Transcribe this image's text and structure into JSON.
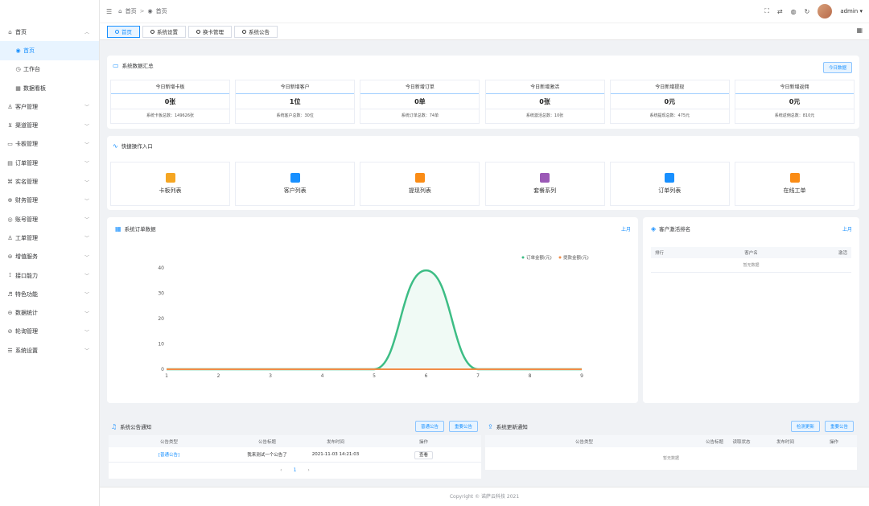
{
  "sidebar": {
    "items": [
      {
        "icon": "home-icon",
        "glyph": "⌂",
        "label": "首页",
        "expanded": true
      },
      {
        "icon": "dot-circle-icon",
        "glyph": "◉",
        "label": "首页",
        "sub": true,
        "active": true
      },
      {
        "icon": "clock-icon",
        "glyph": "◷",
        "label": "工作台",
        "sub": true
      },
      {
        "icon": "dashboard-icon",
        "glyph": "▦",
        "label": "数据看板",
        "sub": true
      },
      {
        "icon": "user-icon",
        "glyph": "♙",
        "label": "客户管理"
      },
      {
        "icon": "cart-icon",
        "glyph": "⊻",
        "label": "渠道管理"
      },
      {
        "icon": "card-icon",
        "glyph": "▭",
        "label": "卡板管理"
      },
      {
        "icon": "order-icon",
        "glyph": "▤",
        "label": "订单管理"
      },
      {
        "icon": "realname-icon",
        "glyph": "⌘",
        "label": "实名管理"
      },
      {
        "icon": "finance-icon",
        "glyph": "⊕",
        "label": "财务管理"
      },
      {
        "icon": "account-icon",
        "glyph": "◎",
        "label": "账号管理"
      },
      {
        "icon": "ticket-icon",
        "glyph": "♙",
        "label": "工单管理"
      },
      {
        "icon": "value-icon",
        "glyph": "⊜",
        "label": "增值服务"
      },
      {
        "icon": "api-icon",
        "glyph": "⟟",
        "label": "接口能力"
      },
      {
        "icon": "feature-icon",
        "glyph": "♬",
        "label": "特色功能"
      },
      {
        "icon": "stats-icon",
        "glyph": "⊖",
        "label": "数据统计"
      },
      {
        "icon": "poll-icon",
        "glyph": "⊘",
        "label": "轮询管理"
      },
      {
        "icon": "settings-icon",
        "glyph": "☰",
        "label": "系统设置"
      }
    ]
  },
  "header": {
    "breadcrumb": [
      {
        "glyph": "⌂",
        "label": "首页"
      },
      {
        "glyph": "◉",
        "label": "首页"
      }
    ],
    "user": "admin"
  },
  "tags": [
    {
      "label": "首页",
      "active": true
    },
    {
      "label": "系统设置"
    },
    {
      "label": "换卡管理"
    },
    {
      "label": "系统公告"
    }
  ],
  "summary": {
    "title": "系统数据汇总",
    "button": "今日数据",
    "stats": [
      {
        "title": "今日新增卡板",
        "value": "0张",
        "sum": "系统卡板总数：149626张"
      },
      {
        "title": "今日新增客户",
        "value": "1位",
        "sum": "系统客户总数：30位"
      },
      {
        "title": "今日新增订单",
        "value": "0单",
        "sum": "系统订单总数：74单"
      },
      {
        "title": "今日新增激活",
        "value": "0张",
        "sum": "系统激活总数：10张"
      },
      {
        "title": "今日新增提现",
        "value": "0元",
        "sum": "系统提现总数：475元"
      },
      {
        "title": "今日新增返佣",
        "value": "0元",
        "sum": "系统返佣总数：810元"
      }
    ]
  },
  "quick": {
    "title": "快捷操作入口",
    "items": [
      {
        "label": "卡板列表",
        "color": "#f5a623",
        "icon": "card-list-icon"
      },
      {
        "label": "客户列表",
        "color": "#1890ff",
        "icon": "customer-list-icon"
      },
      {
        "label": "提现列表",
        "color": "#fa8c16",
        "icon": "withdraw-list-icon"
      },
      {
        "label": "套餐系列",
        "color": "#9b59b6",
        "icon": "package-icon"
      },
      {
        "label": "订单列表",
        "color": "#1890ff",
        "icon": "order-list-icon"
      },
      {
        "label": "在线工单",
        "color": "#fa8c16",
        "icon": "flag-icon"
      }
    ]
  },
  "orders": {
    "title": "系统订单数据",
    "period": "上月"
  },
  "ranking": {
    "title": "客户激活排名",
    "period": "上月",
    "headers": [
      "排行",
      "客户名",
      "激活"
    ],
    "empty": "暂无数据"
  },
  "notice": {
    "title": "系统公告通知",
    "btn1": "普通公告",
    "btn2": "重要公告",
    "headers": [
      "公告类型",
      "公告标题",
      "发布时间",
      "操作"
    ],
    "rows": [
      {
        "type": "[普通公告]",
        "title": "我来测试一个公告了",
        "time": "2021-11-03 14:21:03",
        "action": "查看"
      }
    ],
    "pager": {
      "prev": "‹",
      "page": "1",
      "next": "›"
    }
  },
  "update": {
    "title": "系统更新通知",
    "btn1": "检测更新",
    "btn2": "重要公告",
    "headers": [
      "公告类型",
      "公告标题",
      "读取状态",
      "发布时间",
      "操作"
    ],
    "empty": "暂无数据"
  },
  "footer": "Copyright © 诺萨云科技 2021",
  "chart_data": {
    "type": "line",
    "x": [
      1,
      2,
      3,
      4,
      5,
      6,
      7,
      8,
      9
    ],
    "ylim": [
      0,
      40
    ],
    "yticks": [
      0,
      10,
      20,
      30,
      40
    ],
    "series": [
      {
        "name": "订单金额(元)",
        "color": "#3dbd85",
        "values": [
          0,
          0,
          0,
          0,
          0,
          39,
          0,
          0,
          0
        ]
      },
      {
        "name": "提款金额(元)",
        "color": "#f28c47",
        "values": [
          0,
          0,
          0,
          0,
          0,
          0,
          0,
          0,
          0
        ]
      }
    ],
    "legend": "top-right",
    "grid": false
  }
}
